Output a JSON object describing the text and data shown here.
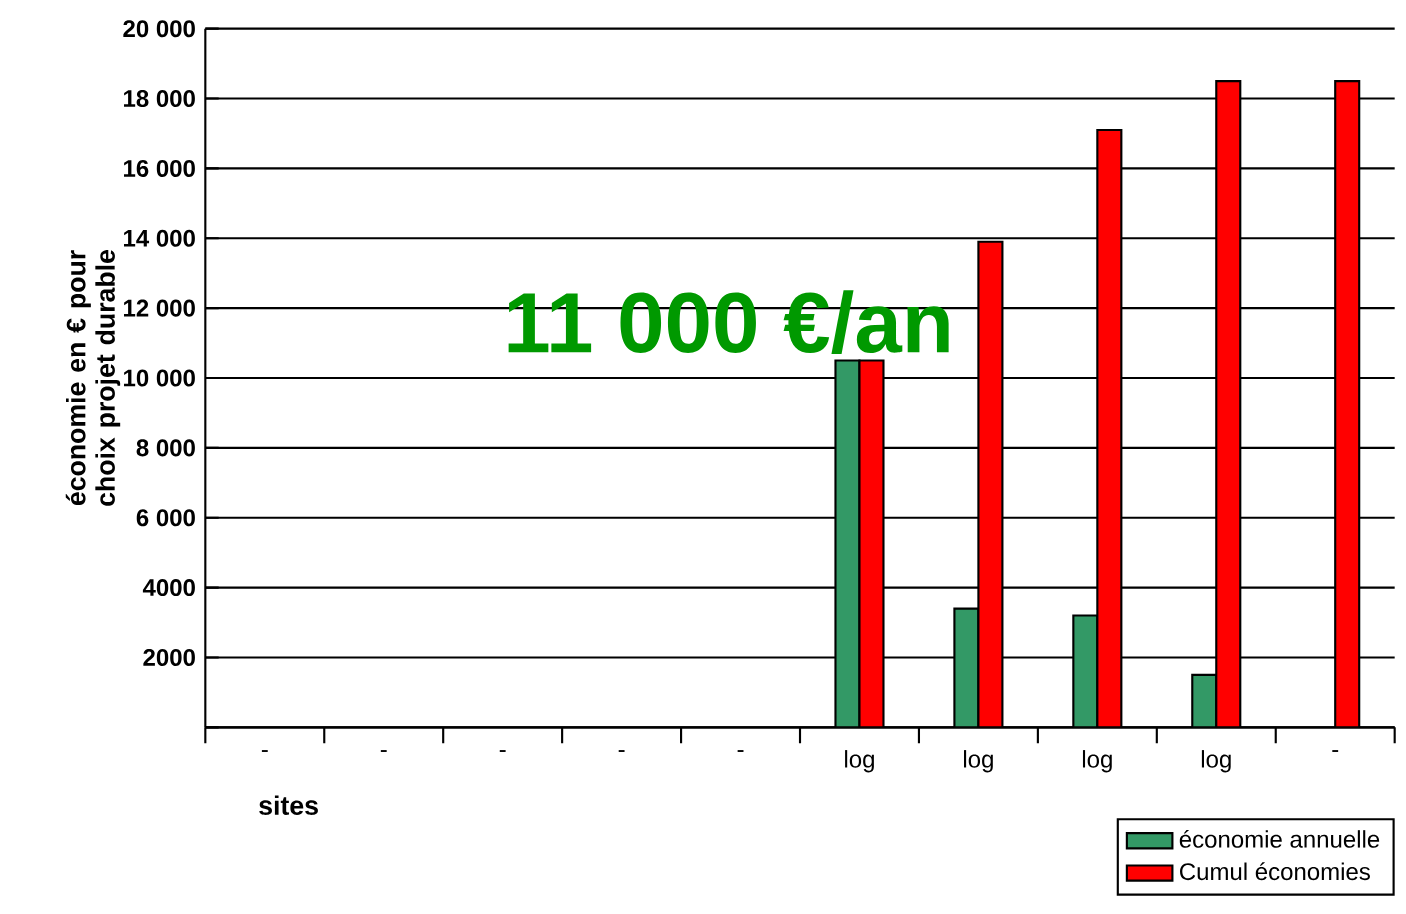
{
  "chart_data": {
    "type": "bar",
    "categories": [
      "-",
      "-",
      "-",
      "-",
      "-",
      "log",
      "log",
      "log",
      "log",
      "-"
    ],
    "xlabel": "sites",
    "ylabel": "économie en € pour choix projet durable",
    "annotations": [
      "11 000 €/an"
    ],
    "series": [
      {
        "name": "économie annuelle",
        "color": "#339966",
        "values": [
          null,
          null,
          null,
          null,
          null,
          10500,
          3400,
          3200,
          1500,
          null
        ]
      },
      {
        "name": "Cumul économies",
        "color": "#ff0000",
        "values": [
          null,
          null,
          null,
          null,
          null,
          10500,
          13900,
          17100,
          18500,
          18500
        ]
      }
    ],
    "ylim": [
      0,
      20000
    ],
    "yticks": [
      {
        "value": 0,
        "label": null
      },
      {
        "value": 2000,
        "label": "2000"
      },
      {
        "value": 4000,
        "label": "4000"
      },
      {
        "value": 6000,
        "label": "6 000"
      },
      {
        "value": 8000,
        "label": "8 000"
      },
      {
        "value": 10000,
        "label": "10 000"
      },
      {
        "value": 12000,
        "label": "12 000"
      },
      {
        "value": 14000,
        "label": "14 000"
      },
      {
        "value": 16000,
        "label": "16 000"
      },
      {
        "value": 18000,
        "label": "18 000"
      },
      {
        "value": 20000,
        "label": "20 000"
      }
    ],
    "grid": "y",
    "legend": "bottom right"
  }
}
